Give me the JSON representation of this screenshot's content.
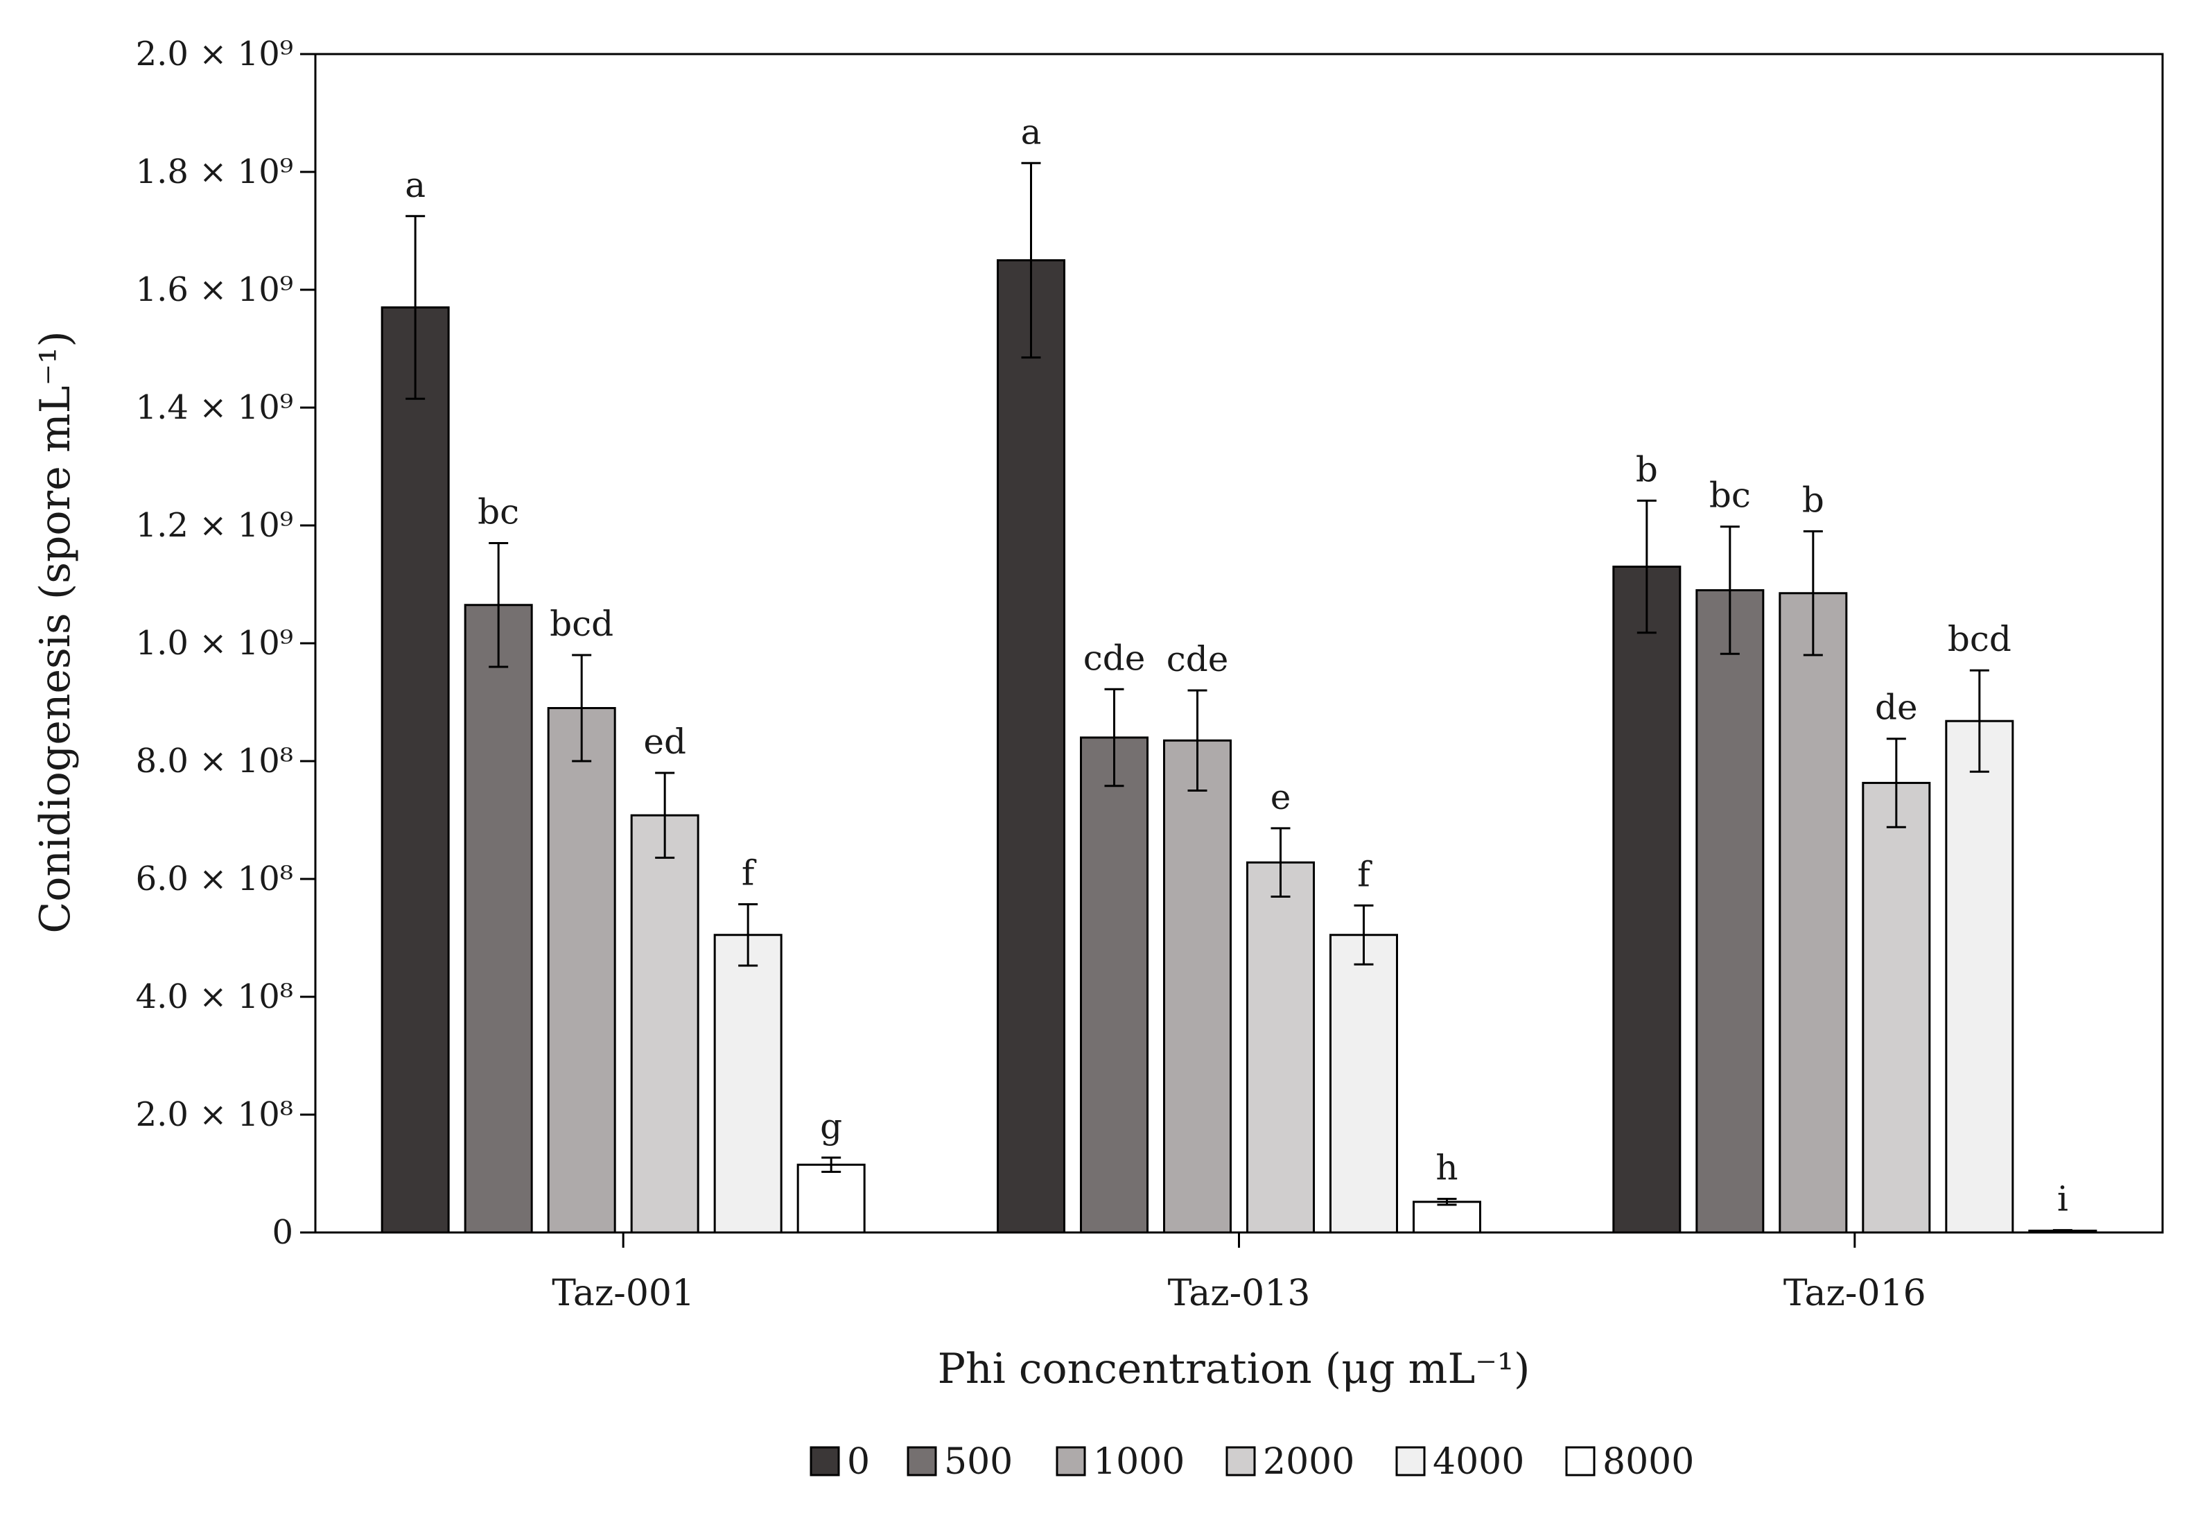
{
  "chart_data": {
    "type": "bar",
    "title": "",
    "xlabel": "Phi concentration (μg mL⁻¹)",
    "ylabel": "Conidiogenesis (spore mL⁻¹)",
    "ylim": [
      0,
      2000000000
    ],
    "y_ticks": [
      {
        "value": 0,
        "label": "0"
      },
      {
        "value": 200000000,
        "label": "2.0 × 10⁸"
      },
      {
        "value": 400000000,
        "label": "4.0 × 10⁸"
      },
      {
        "value": 600000000,
        "label": "6.0 × 10⁸"
      },
      {
        "value": 800000000,
        "label": "8.0 × 10⁸"
      },
      {
        "value": 1000000000,
        "label": "1.0 × 10⁹"
      },
      {
        "value": 1200000000,
        "label": "1.2 × 10⁹"
      },
      {
        "value": 1400000000,
        "label": "1.4 × 10⁹"
      },
      {
        "value": 1600000000,
        "label": "1.6 × 10⁹"
      },
      {
        "value": 1800000000,
        "label": "1.8 × 10⁹"
      },
      {
        "value": 2000000000,
        "label": "2.0 × 10⁹"
      }
    ],
    "categories": [
      "Taz-001",
      "Taz-013",
      "Taz-016"
    ],
    "legend_position": "bottom",
    "series": [
      {
        "name": "0",
        "color": "#3b3737",
        "values": [
          1570000000,
          1650000000,
          1130000000
        ],
        "errors": [
          155000000,
          165000000,
          112000000
        ],
        "letters": [
          "a",
          "a",
          "b"
        ]
      },
      {
        "name": "500",
        "color": "#757070",
        "values": [
          1065000000,
          840000000,
          1090000000
        ],
        "errors": [
          105000000,
          82000000,
          108000000
        ],
        "letters": [
          "bc",
          "cde",
          "bc"
        ]
      },
      {
        "name": "1000",
        "color": "#aeaaaa",
        "values": [
          890000000,
          835000000,
          1085000000
        ],
        "errors": [
          90000000,
          85000000,
          105000000
        ],
        "letters": [
          "bcd",
          "cde",
          "b"
        ]
      },
      {
        "name": "2000",
        "color": "#d0cece",
        "values": [
          708000000,
          628000000,
          763000000
        ],
        "errors": [
          72000000,
          58000000,
          75000000
        ],
        "letters": [
          "ed",
          "e",
          "de"
        ]
      },
      {
        "name": "4000",
        "color": "#f0f0f0",
        "values": [
          505000000,
          505000000,
          868000000
        ],
        "errors": [
          52000000,
          50000000,
          86000000
        ],
        "letters": [
          "f",
          "f",
          "bcd"
        ]
      },
      {
        "name": "8000",
        "color": "#ffffff",
        "values": [
          115000000,
          52000000,
          3000000
        ],
        "errors": [
          12000000,
          5000000,
          1000000
        ],
        "letters": [
          "g",
          "h",
          "i"
        ]
      }
    ]
  }
}
